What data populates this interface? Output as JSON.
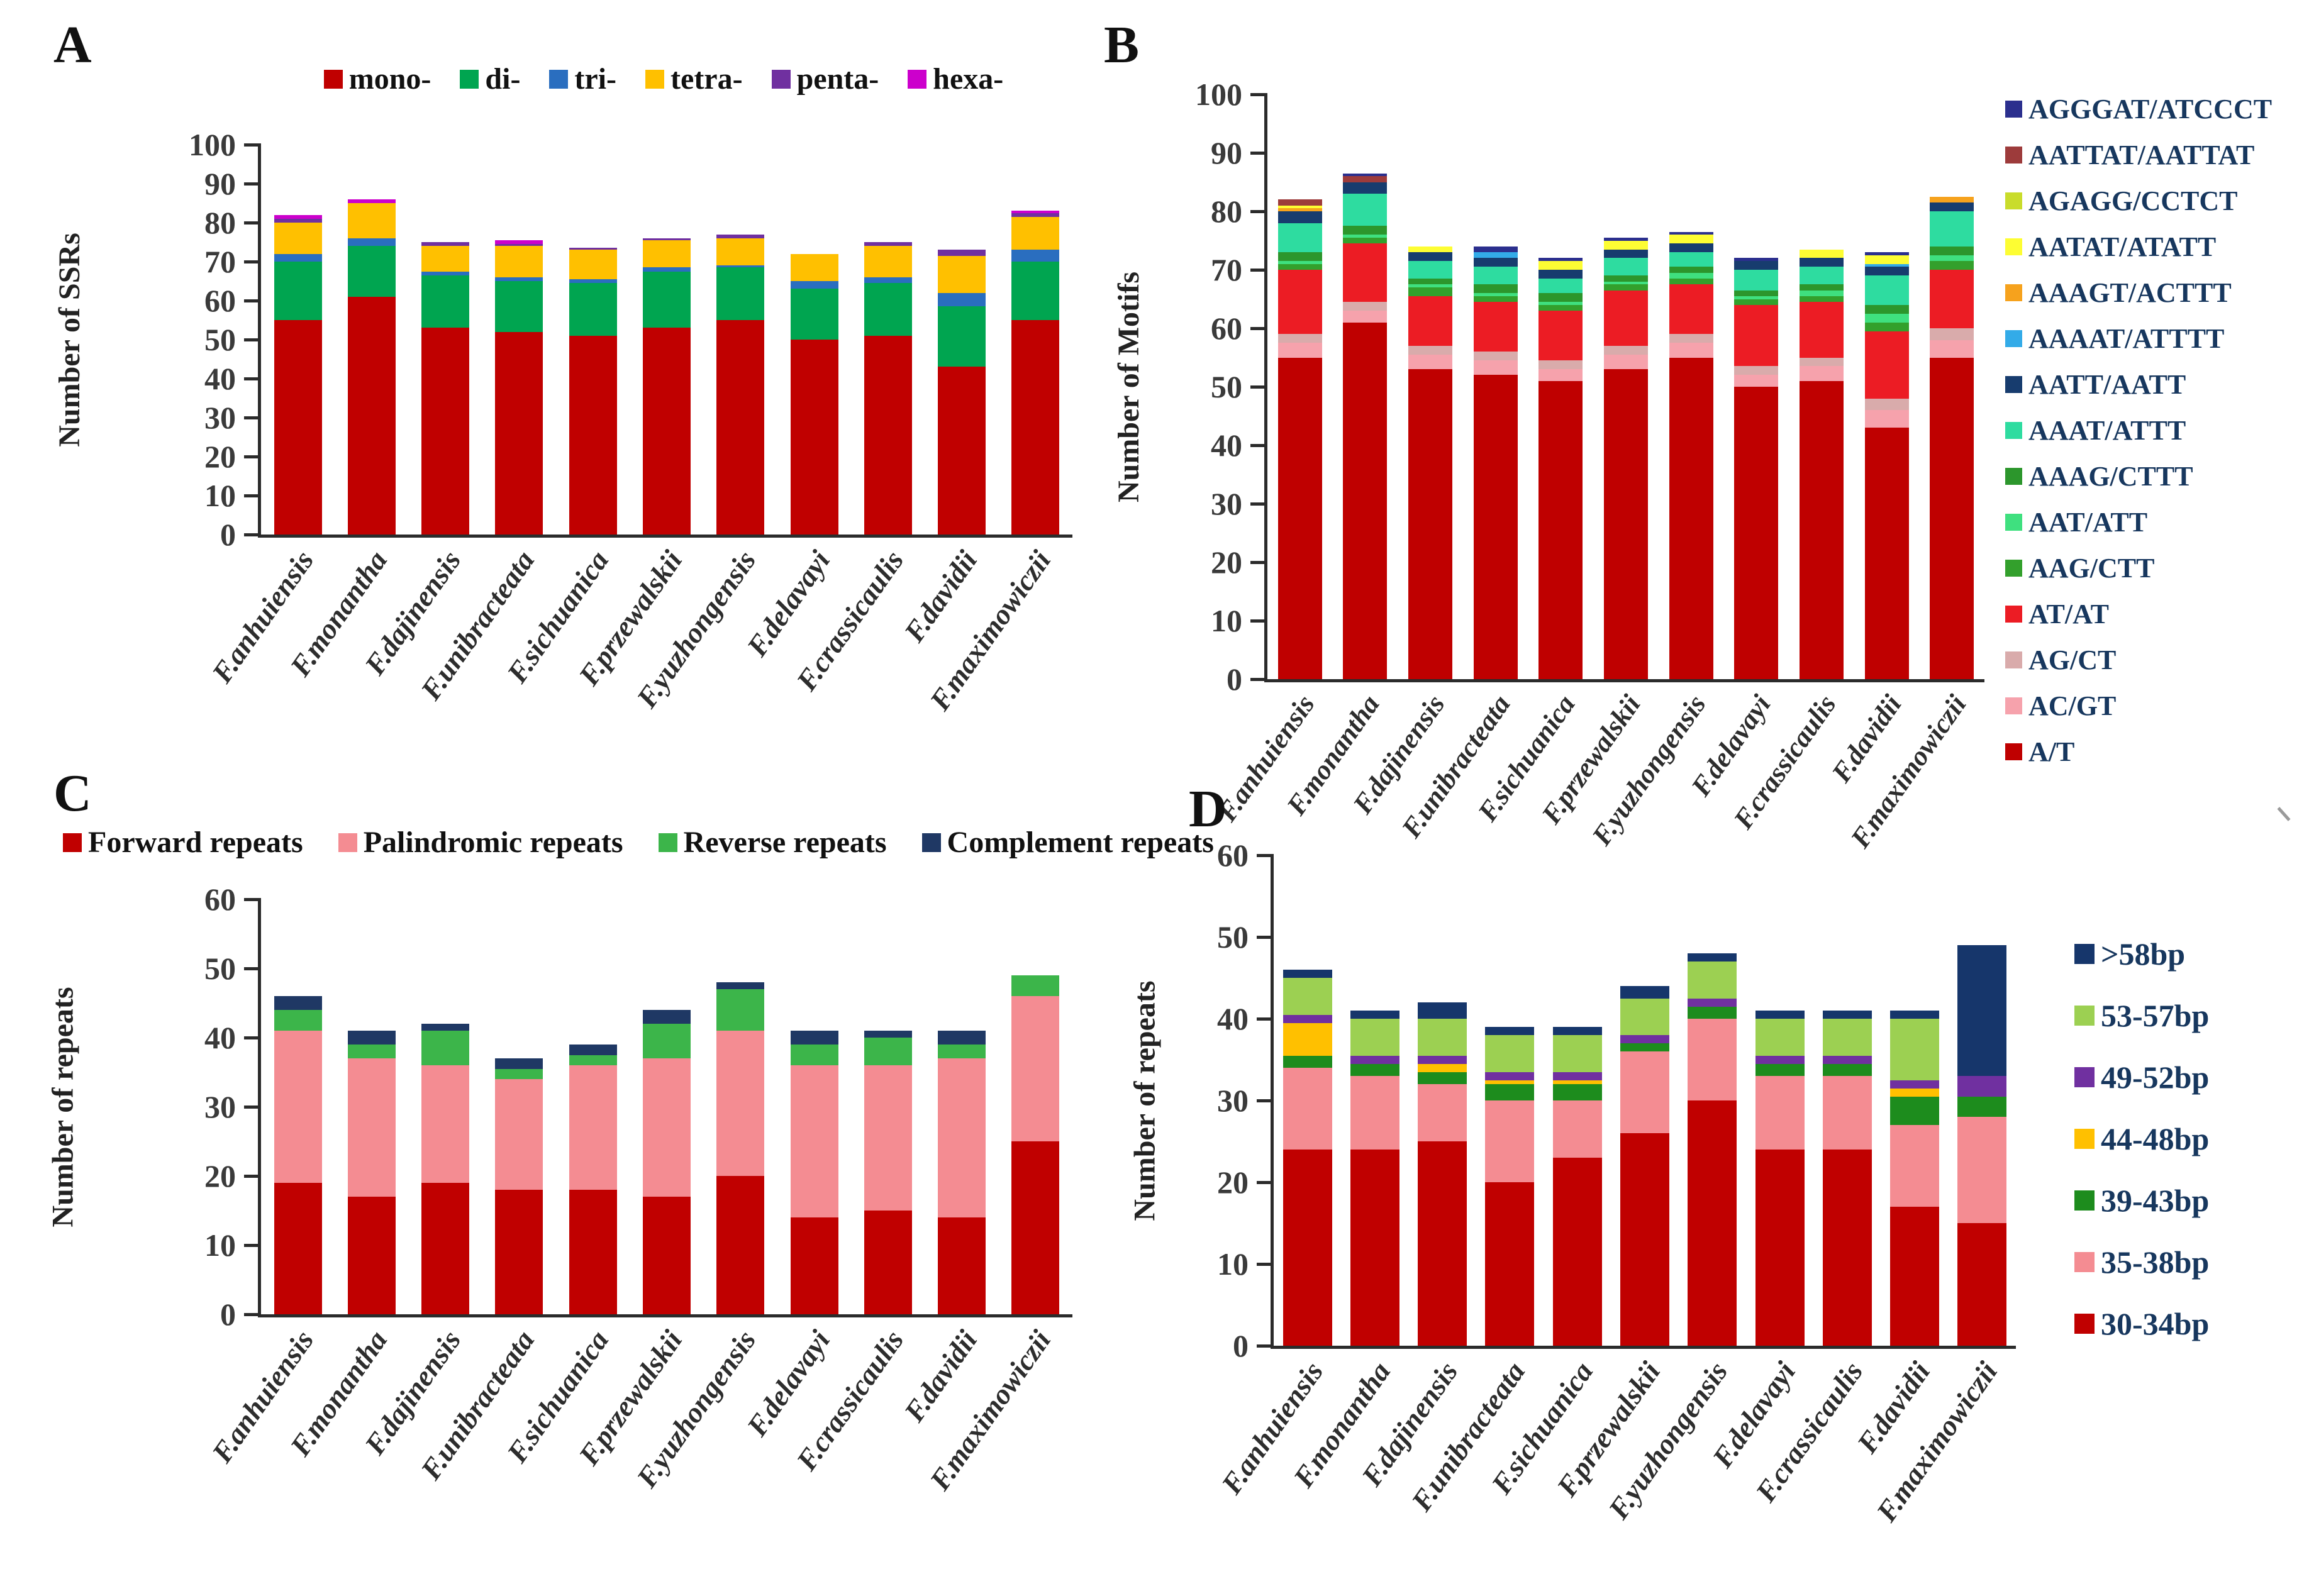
{
  "figure": {
    "background": "#ffffff"
  },
  "categories": [
    "F.anhuiensis",
    "F.monantha",
    "F.dajinensis",
    "F.unibracteata",
    "F.sichuanica",
    "F.przewalskii",
    "F.yuzhongensis",
    "F.delavayi",
    "F.crassicaulis",
    "F.davidii",
    "F.maximowiczii"
  ],
  "chart_data": [
    {
      "id": "A",
      "letter": "A",
      "type": "bar",
      "stacked": true,
      "ylabel": "Number of SSRs",
      "ylim": [
        0,
        100
      ],
      "yticks": [
        0,
        10,
        20,
        30,
        40,
        50,
        60,
        70,
        80,
        90,
        100
      ],
      "grid": false,
      "legend_position": "top",
      "legend_reverse": false,
      "series": [
        {
          "name": "mono-",
          "color": "#C00000",
          "values": [
            55,
            61,
            53,
            52,
            51,
            53,
            55,
            50,
            51,
            43,
            55
          ]
        },
        {
          "name": "di-",
          "color": "#00A550",
          "values": [
            15,
            13,
            13.5,
            13,
            13.5,
            14.5,
            13.5,
            13,
            13.5,
            15.5,
            15
          ]
        },
        {
          "name": "tri-",
          "color": "#2A6EBF",
          "values": [
            2,
            2,
            1,
            1,
            1,
            1,
            0.5,
            2,
            1.5,
            3.5,
            3
          ]
        },
        {
          "name": "tetra-",
          "color": "#FFC000",
          "values": [
            8,
            9,
            6.5,
            8,
            7.5,
            7,
            7,
            7,
            8,
            9.5,
            8.5
          ]
        },
        {
          "name": "penta-",
          "color": "#7030A0",
          "values": [
            1,
            0,
            1,
            0.5,
            0.5,
            0.5,
            1,
            0,
            1,
            1.5,
            1
          ]
        },
        {
          "name": "hexa-",
          "color": "#CC00CC",
          "values": [
            1,
            1,
            0,
            1,
            0,
            0,
            0,
            0,
            0,
            0,
            0.5
          ]
        }
      ]
    },
    {
      "id": "B",
      "letter": "B",
      "type": "bar",
      "stacked": true,
      "ylabel": "Number of Motifs",
      "ylim": [
        0,
        100
      ],
      "yticks": [
        0,
        10,
        20,
        30,
        40,
        50,
        60,
        70,
        80,
        90,
        100
      ],
      "grid": false,
      "legend_position": "right",
      "legend_reverse": true,
      "series": [
        {
          "name": "A/T",
          "color": "#BF0000",
          "values": [
            55,
            61,
            53,
            52,
            51,
            53,
            55,
            50,
            51,
            43,
            55
          ]
        },
        {
          "name": "AC/GT",
          "color": "#F6A2AC",
          "values": [
            2.5,
            2,
            2.5,
            2.5,
            2,
            2.5,
            2.5,
            2,
            2.5,
            3,
            3
          ]
        },
        {
          "name": "AG/CT",
          "color": "#D9ABAB",
          "values": [
            1.5,
            1.5,
            1.5,
            1.5,
            1.5,
            1.5,
            1.5,
            1.5,
            1.5,
            2,
            2
          ]
        },
        {
          "name": "AT/AT",
          "color": "#EC1C24",
          "values": [
            11,
            10,
            8.5,
            8.5,
            8.5,
            9.5,
            8.5,
            10.5,
            9.5,
            11.5,
            10
          ]
        },
        {
          "name": "AAG/CTT",
          "color": "#33A02C",
          "values": [
            1,
            1,
            1.5,
            1,
            1,
            1,
            1,
            1,
            1,
            1.5,
            1.5
          ]
        },
        {
          "name": "AAT/ATT",
          "color": "#3FE07F",
          "values": [
            0.5,
            0.5,
            0.5,
            0.5,
            0.5,
            0.5,
            1,
            0.5,
            1,
            1.5,
            1
          ]
        },
        {
          "name": "AAAG/CTTT",
          "color": "#2C962C",
          "values": [
            1.5,
            1.5,
            1,
            1.5,
            1.5,
            1,
            1,
            1,
            1,
            1.5,
            1.5
          ]
        },
        {
          "name": "AAAT/ATTT",
          "color": "#2EDCA0",
          "values": [
            5,
            5.5,
            3,
            3,
            2.5,
            3,
            2.5,
            3.5,
            3,
            5,
            6
          ]
        },
        {
          "name": "AATT/AATT",
          "color": "#173C6E",
          "values": [
            2,
            2,
            1.5,
            1.5,
            1.5,
            1.5,
            1.5,
            1.5,
            1.5,
            1.5,
            1.5
          ]
        },
        {
          "name": "AAAAT/ATTTT",
          "color": "#33ABE8",
          "values": [
            0,
            0,
            0,
            1,
            0,
            0,
            0,
            0,
            0,
            0.5,
            0
          ]
        },
        {
          "name": "AAAGT/ACTTT",
          "color": "#F6A21D",
          "values": [
            0.5,
            0,
            0,
            0,
            0,
            0,
            0,
            0,
            0,
            0,
            1
          ]
        },
        {
          "name": "AATAT/ATATT",
          "color": "#FDFD33",
          "values": [
            0.5,
            0,
            1,
            0,
            1.5,
            1.5,
            1.5,
            0,
            1.5,
            1.5,
            0
          ]
        },
        {
          "name": "AGAGG/CCTCT",
          "color": "#C9DC2B",
          "values": [
            0,
            0,
            0,
            0,
            0,
            0,
            0,
            0,
            0,
            0,
            0
          ]
        },
        {
          "name": "AATTAT/AATTAT",
          "color": "#9D3B3B",
          "values": [
            1,
            1,
            0,
            0,
            0,
            0,
            0,
            0,
            0,
            0,
            0
          ]
        },
        {
          "name": "AGGGAT/ATCCCT",
          "color": "#2B2F8E",
          "values": [
            0,
            0.5,
            0,
            1,
            0.5,
            0.5,
            0.5,
            0.5,
            0,
            0.5,
            0
          ]
        }
      ]
    },
    {
      "id": "C",
      "letter": "C",
      "type": "bar",
      "stacked": true,
      "ylabel": "Number of repeats",
      "ylim": [
        0,
        60
      ],
      "yticks": [
        0,
        10,
        20,
        30,
        40,
        50,
        60
      ],
      "grid": false,
      "legend_position": "top",
      "legend_reverse": false,
      "series": [
        {
          "name": "Forward repeats",
          "color": "#C00000",
          "values": [
            19,
            17,
            19,
            18,
            18,
            17,
            20,
            14,
            15,
            14,
            25
          ]
        },
        {
          "name": "Palindromic repeats",
          "color": "#F48C92",
          "values": [
            22,
            20,
            17,
            16,
            18,
            20,
            21,
            22,
            21,
            23,
            21
          ]
        },
        {
          "name": "Reverse repeats",
          "color": "#3CB54A",
          "values": [
            3,
            2,
            5,
            1.5,
            1.5,
            5,
            6,
            3,
            4,
            2,
            3
          ]
        },
        {
          "name": "Complement repeats",
          "color": "#1F3864",
          "values": [
            2,
            2,
            1,
            1.5,
            1.5,
            2,
            1,
            2,
            1,
            2,
            0
          ]
        }
      ]
    },
    {
      "id": "D",
      "letter": "D",
      "type": "bar",
      "stacked": true,
      "ylabel": "Number of repeats",
      "ylim": [
        0,
        60
      ],
      "yticks": [
        0,
        10,
        20,
        30,
        40,
        50,
        60
      ],
      "grid": false,
      "legend_position": "right",
      "legend_reverse": true,
      "series": [
        {
          "name": "30-34bp",
          "color": "#C00000",
          "values": [
            24,
            24,
            25,
            20,
            23,
            26,
            30,
            24,
            24,
            17,
            15
          ]
        },
        {
          "name": "35-38bp",
          "color": "#F48C92",
          "values": [
            10,
            9,
            7,
            10,
            7,
            10,
            10,
            9,
            9,
            10,
            13
          ]
        },
        {
          "name": "39-43bp",
          "color": "#1D8C1D",
          "values": [
            1.5,
            1.5,
            1.5,
            2,
            2,
            1,
            1.5,
            1.5,
            1.5,
            3.5,
            2.5
          ]
        },
        {
          "name": "44-48bp",
          "color": "#FFC000",
          "values": [
            4,
            0,
            1,
            0.5,
            0.5,
            0,
            0,
            0,
            0,
            1,
            0
          ]
        },
        {
          "name": "49-52bp",
          "color": "#7030A0",
          "values": [
            1,
            1,
            1,
            1,
            1,
            1,
            1,
            1,
            1,
            1,
            2.5
          ]
        },
        {
          "name": "53-57bp",
          "color": "#9CD052",
          "values": [
            4.5,
            4.5,
            4.5,
            4.5,
            4.5,
            4.5,
            4.5,
            4.5,
            4.5,
            7.5,
            0
          ]
        },
        {
          "name": ">58bp",
          "color": "#16366B",
          "values": [
            1,
            1,
            2,
            1,
            1,
            1.5,
            1,
            1,
            1,
            1,
            16
          ]
        }
      ]
    }
  ]
}
